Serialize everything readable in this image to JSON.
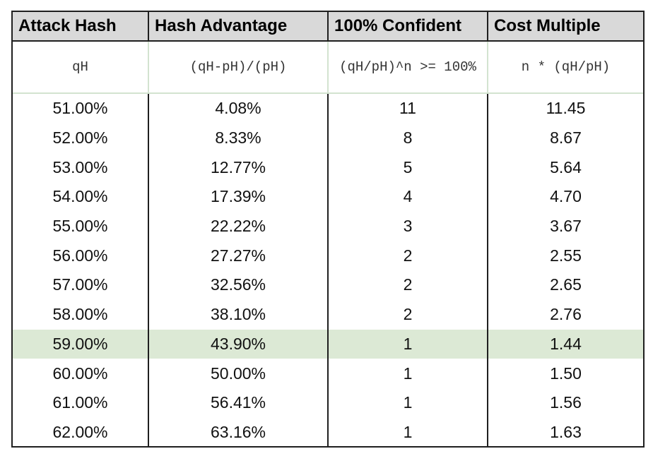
{
  "headers": [
    "Attack Hash",
    "Hash Advantage",
    "100% Confident",
    "Cost Multiple"
  ],
  "formulas": [
    "qH",
    "(qH-pH)/(pH)",
    "(qH/pH)^n >= 100%",
    "n * (qH/pH)"
  ],
  "rows": [
    [
      "51.00%",
      "4.08%",
      "11",
      "11.45"
    ],
    [
      "52.00%",
      "8.33%",
      "8",
      "8.67"
    ],
    [
      "53.00%",
      "12.77%",
      "5",
      "5.64"
    ],
    [
      "54.00%",
      "17.39%",
      "4",
      "4.70"
    ],
    [
      "55.00%",
      "22.22%",
      "3",
      "3.67"
    ],
    [
      "56.00%",
      "27.27%",
      "2",
      "2.55"
    ],
    [
      "57.00%",
      "32.56%",
      "2",
      "2.65"
    ],
    [
      "58.00%",
      "38.10%",
      "2",
      "2.76"
    ],
    [
      "59.00%",
      "43.90%",
      "1",
      "1.44"
    ],
    [
      "60.00%",
      "50.00%",
      "1",
      "1.50"
    ],
    [
      "61.00%",
      "56.41%",
      "1",
      "1.56"
    ],
    [
      "62.00%",
      "63.16%",
      "1",
      "1.63"
    ]
  ],
  "highlight_row_index": 8,
  "colors": {
    "header_bg": "#d9d9d9",
    "highlight_bg": "#dce9d5",
    "border": "#1f1f1f"
  }
}
